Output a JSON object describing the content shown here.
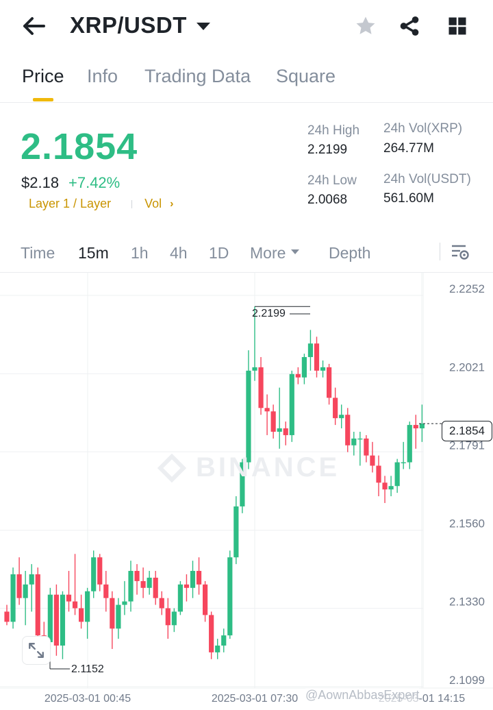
{
  "header": {
    "pair": "XRP/USDT"
  },
  "tabs": [
    {
      "label": "Price",
      "active": true
    },
    {
      "label": "Info",
      "active": false
    },
    {
      "label": "Trading Data",
      "active": false
    },
    {
      "label": "Square",
      "active": false
    }
  ],
  "ticker": {
    "last_price": "2.1854",
    "usd_price": "$2.18",
    "change_pct": "+7.42%",
    "tag": "Layer 1 / Layer",
    "vol_link": "Vol",
    "high_label": "24h High",
    "high_value": "2.2199",
    "low_label": "24h Low",
    "low_value": "2.0068",
    "vol_xrp_label": "24h Vol(XRP)",
    "vol_xrp_value": "264.77M",
    "vol_usdt_label": "24h Vol(USDT)",
    "vol_usdt_value": "561.60M",
    "up_color": "#2ebd85",
    "down_color": "#f6465d",
    "accent_color": "#f0b90b"
  },
  "timeframes": [
    {
      "label": "Time",
      "active": false
    },
    {
      "label": "15m",
      "active": true
    },
    {
      "label": "1h",
      "active": false
    },
    {
      "label": "4h",
      "active": false
    },
    {
      "label": "1D",
      "active": false
    },
    {
      "label": "More",
      "active": false
    },
    {
      "label": "Depth",
      "active": false
    }
  ],
  "chart": {
    "watermark": "BINANCE",
    "price_axis": [
      "2.2252",
      "2.2021",
      "2.1791",
      "2.1560",
      "2.1330",
      "2.1099"
    ],
    "time_axis": [
      "2025-03-01 00:45",
      "2025-03-01 07:30",
      "2025-03-01 14:15"
    ],
    "current_price_tag": "2.1854",
    "high_marker": "2.2199",
    "low_marker": "2.1152",
    "credit": "@AownAbbasExpert"
  },
  "chart_data": {
    "type": "candlestick",
    "ylim": [
      2.1099,
      2.2252
    ],
    "y_ticks": [
      2.2252,
      2.2021,
      2.1791,
      2.156,
      2.133,
      2.1099
    ],
    "x_ticks": [
      "2025-03-01 00:45",
      "2025-03-01 07:30",
      "2025-03-01 14:15"
    ],
    "interval": "15m",
    "candles": [
      [
        2.13,
        2.132,
        2.126,
        2.127
      ],
      [
        2.127,
        2.143,
        2.125,
        2.141
      ],
      [
        2.141,
        2.146,
        2.132,
        2.134
      ],
      [
        2.134,
        2.142,
        2.126,
        2.138
      ],
      [
        2.138,
        2.144,
        2.13,
        2.141
      ],
      [
        2.141,
        2.143,
        2.121,
        2.123
      ],
      [
        2.123,
        2.127,
        2.116,
        2.121
      ],
      [
        2.121,
        2.137,
        2.119,
        2.135
      ],
      [
        2.135,
        2.138,
        2.117,
        2.12
      ],
      [
        2.12,
        2.136,
        2.116,
        2.135
      ],
      [
        2.135,
        2.142,
        2.13,
        2.133
      ],
      [
        2.133,
        2.147,
        2.129,
        2.131
      ],
      [
        2.131,
        2.135,
        2.125,
        2.127
      ],
      [
        2.127,
        2.137,
        2.122,
        2.136
      ],
      [
        2.136,
        2.148,
        2.134,
        2.146
      ],
      [
        2.146,
        2.147,
        2.136,
        2.138
      ],
      [
        2.138,
        2.142,
        2.13,
        2.134
      ],
      [
        2.134,
        2.136,
        2.119,
        2.125
      ],
      [
        2.125,
        2.134,
        2.122,
        2.132
      ],
      [
        2.132,
        2.139,
        2.129,
        2.133
      ],
      [
        2.133,
        2.145,
        2.13,
        2.142
      ],
      [
        2.142,
        2.144,
        2.135,
        2.139
      ],
      [
        2.139,
        2.143,
        2.134,
        2.137
      ],
      [
        2.137,
        2.142,
        2.135,
        2.14
      ],
      [
        2.14,
        2.142,
        2.132,
        2.134
      ],
      [
        2.134,
        2.136,
        2.129,
        2.131
      ],
      [
        2.131,
        2.134,
        2.122,
        2.126
      ],
      [
        2.126,
        2.131,
        2.124,
        2.13
      ],
      [
        2.13,
        2.139,
        2.129,
        2.138
      ],
      [
        2.138,
        2.141,
        2.133,
        2.137
      ],
      [
        2.137,
        2.145,
        2.134,
        2.142
      ],
      [
        2.142,
        2.146,
        2.135,
        2.138
      ],
      [
        2.138,
        2.139,
        2.127,
        2.129
      ],
      [
        2.129,
        2.13,
        2.116,
        2.118
      ],
      [
        2.118,
        2.122,
        2.116,
        2.12
      ],
      [
        2.12,
        2.125,
        2.118,
        2.123
      ],
      [
        2.123,
        2.148,
        2.122,
        2.146
      ],
      [
        2.146,
        2.164,
        2.144,
        2.161
      ],
      [
        2.161,
        2.175,
        2.159,
        2.174
      ],
      [
        2.174,
        2.207,
        2.172,
        2.201
      ],
      [
        2.201,
        2.2199,
        2.198,
        2.202
      ],
      [
        2.202,
        2.205,
        2.188,
        2.19
      ],
      [
        2.19,
        2.194,
        2.182,
        2.189
      ],
      [
        2.189,
        2.191,
        2.181,
        2.183
      ],
      [
        2.183,
        2.196,
        2.178,
        2.184
      ],
      [
        2.184,
        2.186,
        2.179,
        2.182
      ],
      [
        2.182,
        2.201,
        2.18,
        2.2
      ],
      [
        2.2,
        2.202,
        2.197,
        2.199
      ],
      [
        2.199,
        2.206,
        2.197,
        2.205
      ],
      [
        2.205,
        2.213,
        2.201,
        2.209
      ],
      [
        2.209,
        2.211,
        2.199,
        2.201
      ],
      [
        2.201,
        2.204,
        2.199,
        2.202
      ],
      [
        2.202,
        2.203,
        2.191,
        2.193
      ],
      [
        2.193,
        2.196,
        2.185,
        2.187
      ],
      [
        2.187,
        2.191,
        2.184,
        2.188
      ],
      [
        2.188,
        2.19,
        2.177,
        2.179
      ],
      [
        2.179,
        2.183,
        2.176,
        2.181
      ],
      [
        2.181,
        2.183,
        2.173,
        2.181
      ],
      [
        2.181,
        2.182,
        2.174,
        2.176
      ],
      [
        2.176,
        2.18,
        2.171,
        2.173
      ],
      [
        2.173,
        2.176,
        2.164,
        2.168
      ],
      [
        2.168,
        2.17,
        2.162,
        2.166
      ],
      [
        2.166,
        2.17,
        2.164,
        2.167
      ],
      [
        2.167,
        2.175,
        2.165,
        2.174
      ],
      [
        2.174,
        2.18,
        2.172,
        2.174
      ],
      [
        2.174,
        2.186,
        2.172,
        2.185
      ],
      [
        2.185,
        2.188,
        2.178,
        2.184
      ],
      [
        2.184,
        2.191,
        2.18,
        2.1854
      ]
    ]
  }
}
